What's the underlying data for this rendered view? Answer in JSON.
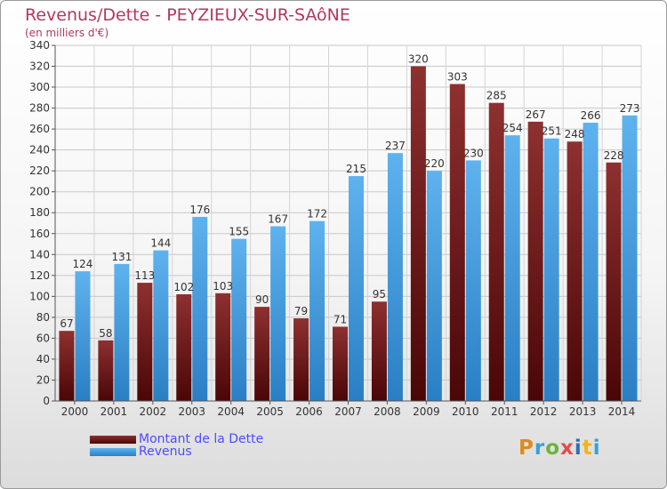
{
  "header": {
    "title": "Revenus/Dette - PEYZIEUX-SUR-SAôNE",
    "subtitle": "(en milliers d'€)"
  },
  "logo": {
    "text": "Proxiti",
    "colors": [
      "#e08a1e",
      "#3aa0d8",
      "#6db33f",
      "#e34b4b",
      "#2f6fb5",
      "#f3b41b",
      "#3aa0d8"
    ]
  },
  "chart_data": {
    "type": "bar",
    "categories": [
      "2000",
      "2001",
      "2002",
      "2003",
      "2004",
      "2005",
      "2006",
      "2007",
      "2008",
      "2009",
      "2010",
      "2011",
      "2012",
      "2013",
      "2014"
    ],
    "series": [
      {
        "name": "Montant de la Dette",
        "color": "#7a1a1a",
        "values": [
          67,
          58,
          113,
          102,
          103,
          90,
          79,
          71,
          95,
          320,
          303,
          285,
          267,
          248,
          228
        ]
      },
      {
        "name": "Revenus",
        "color": "#4ea6e6",
        "values": [
          124,
          131,
          144,
          176,
          155,
          167,
          172,
          215,
          237,
          220,
          230,
          254,
          251,
          266,
          273
        ]
      }
    ],
    "ylim": [
      0,
      340
    ],
    "yticks": [
      0,
      20,
      40,
      60,
      80,
      100,
      120,
      140,
      160,
      180,
      200,
      220,
      240,
      260,
      280,
      300,
      320,
      340
    ],
    "grid": true,
    "legend": "bottom-left"
  }
}
